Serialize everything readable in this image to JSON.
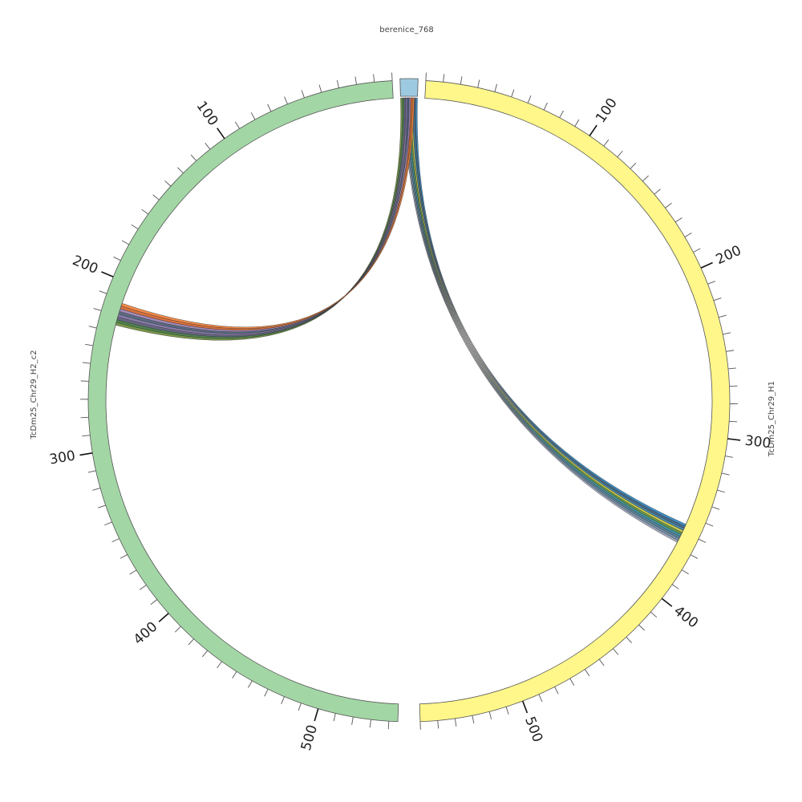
{
  "diagram": {
    "type": "circos-chord",
    "segments": [
      {
        "id": "berenice_768",
        "label": "berenice_768",
        "color": "#9ecae1",
        "length": 8,
        "tick_labels": []
      },
      {
        "id": "H1",
        "label": "TcDm25_Chr29_H1",
        "color": "#fff78a",
        "length": 560,
        "tick_labels": [
          "100",
          "200",
          "300",
          "400",
          "500"
        ]
      },
      {
        "id": "H2",
        "label": "TcDm25_Chr29_H2_c2",
        "color": "#a3d6a5",
        "length": 545,
        "tick_labels": [
          "100",
          "200",
          "300",
          "400",
          "500"
        ]
      }
    ],
    "links": [
      {
        "to": "H1",
        "colors": [
          "#9ba3b9",
          "#6b8ba4",
          "#4c7a94",
          "#2f8f9f",
          "#5b8f3c",
          "#c9c93a",
          "#3a7fa8",
          "#3b5f80",
          "#2e86c1"
        ]
      },
      {
        "to": "H2",
        "colors": [
          "#6e8d3b",
          "#3d7a3d",
          "#5c5a7a",
          "#7b6fa0",
          "#4c5f7a",
          "#9b7fb0",
          "#d9662b",
          "#f07f37"
        ]
      }
    ]
  }
}
